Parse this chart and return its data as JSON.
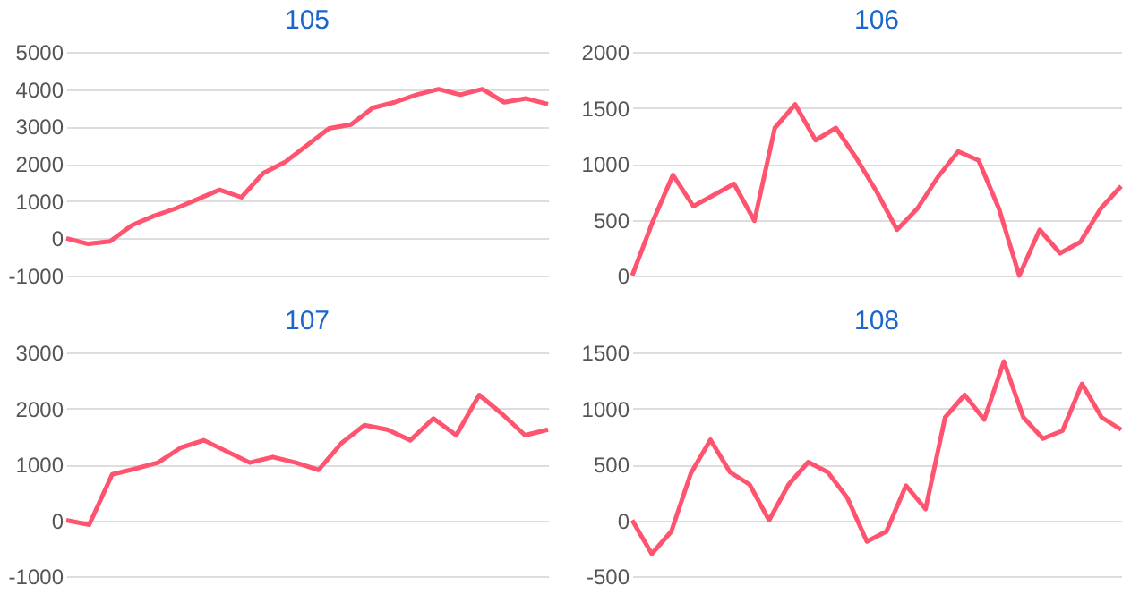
{
  "chart_data": [
    {
      "type": "line",
      "title": "105",
      "categories": [
        null,
        null,
        null,
        null,
        null,
        null,
        null,
        null,
        null,
        null,
        null,
        null,
        null,
        null,
        null,
        null,
        null,
        null,
        null,
        null,
        null,
        null,
        null
      ],
      "series": [
        {
          "color": "#ff5470",
          "values": [
            0,
            -150,
            -80,
            350,
            600,
            800,
            1050,
            1300,
            1100,
            1750,
            2050,
            2500,
            2950,
            3050,
            3500,
            3650,
            3850,
            4000,
            3850,
            4000,
            3650,
            3750,
            3600
          ]
        }
      ],
      "ylim": [
        -1000,
        5000
      ],
      "yticks": [
        -1000,
        0,
        1000,
        2000,
        3000,
        4000,
        5000
      ],
      "grid": "y",
      "tick_labels": "y",
      "legend": false,
      "marker": "none",
      "line_style": "solid"
    },
    {
      "type": "line",
      "title": "106",
      "categories": [
        null,
        null,
        null,
        null,
        null,
        null,
        null,
        null,
        null,
        null,
        null,
        null,
        null,
        null,
        null,
        null,
        null,
        null,
        null,
        null,
        null,
        null,
        null,
        null,
        null
      ],
      "series": [
        {
          "color": "#ff5470",
          "values": [
            0,
            480,
            900,
            620,
            720,
            820,
            490,
            1320,
            1530,
            1210,
            1320,
            1050,
            750,
            410,
            600,
            880,
            1110,
            1030,
            600,
            0,
            410,
            200,
            300,
            600,
            800
          ]
        }
      ],
      "ylim": [
        0,
        2000
      ],
      "yticks": [
        0,
        500,
        1000,
        1500,
        2000
      ],
      "grid": "y",
      "tick_labels": "y",
      "legend": false,
      "marker": "none",
      "line_style": "solid"
    },
    {
      "type": "line",
      "title": "107",
      "categories": [
        null,
        null,
        null,
        null,
        null,
        null,
        null,
        null,
        null,
        null,
        null,
        null,
        null,
        null,
        null,
        null,
        null,
        null,
        null,
        null,
        null,
        null
      ],
      "series": [
        {
          "color": "#ff5470",
          "values": [
            0,
            -80,
            820,
            920,
            1030,
            1300,
            1430,
            1230,
            1030,
            1130,
            1030,
            900,
            1380,
            1700,
            1620,
            1430,
            1820,
            1520,
            2240,
            1900,
            1520,
            1620
          ]
        }
      ],
      "ylim": [
        -1000,
        3000
      ],
      "yticks": [
        -1000,
        0,
        1000,
        2000,
        3000
      ],
      "grid": "y",
      "tick_labels": "y",
      "legend": false,
      "marker": "none",
      "line_style": "solid"
    },
    {
      "type": "line",
      "title": "108",
      "categories": [
        null,
        null,
        null,
        null,
        null,
        null,
        null,
        null,
        null,
        null,
        null,
        null,
        null,
        null,
        null,
        null,
        null,
        null,
        null,
        null,
        null,
        null,
        null,
        null,
        null,
        null
      ],
      "series": [
        {
          "color": "#ff5470",
          "values": [
            0,
            -300,
            -100,
            420,
            720,
            430,
            320,
            0,
            320,
            520,
            430,
            200,
            -190,
            -100,
            310,
            100,
            920,
            1120,
            900,
            1420,
            920,
            730,
            800,
            1220,
            920,
            810
          ]
        }
      ],
      "ylim": [
        -500,
        1500
      ],
      "yticks": [
        -500,
        0,
        500,
        1000,
        1500
      ],
      "grid": "y",
      "tick_labels": "y",
      "legend": false,
      "marker": "none",
      "line_style": "solid"
    }
  ]
}
